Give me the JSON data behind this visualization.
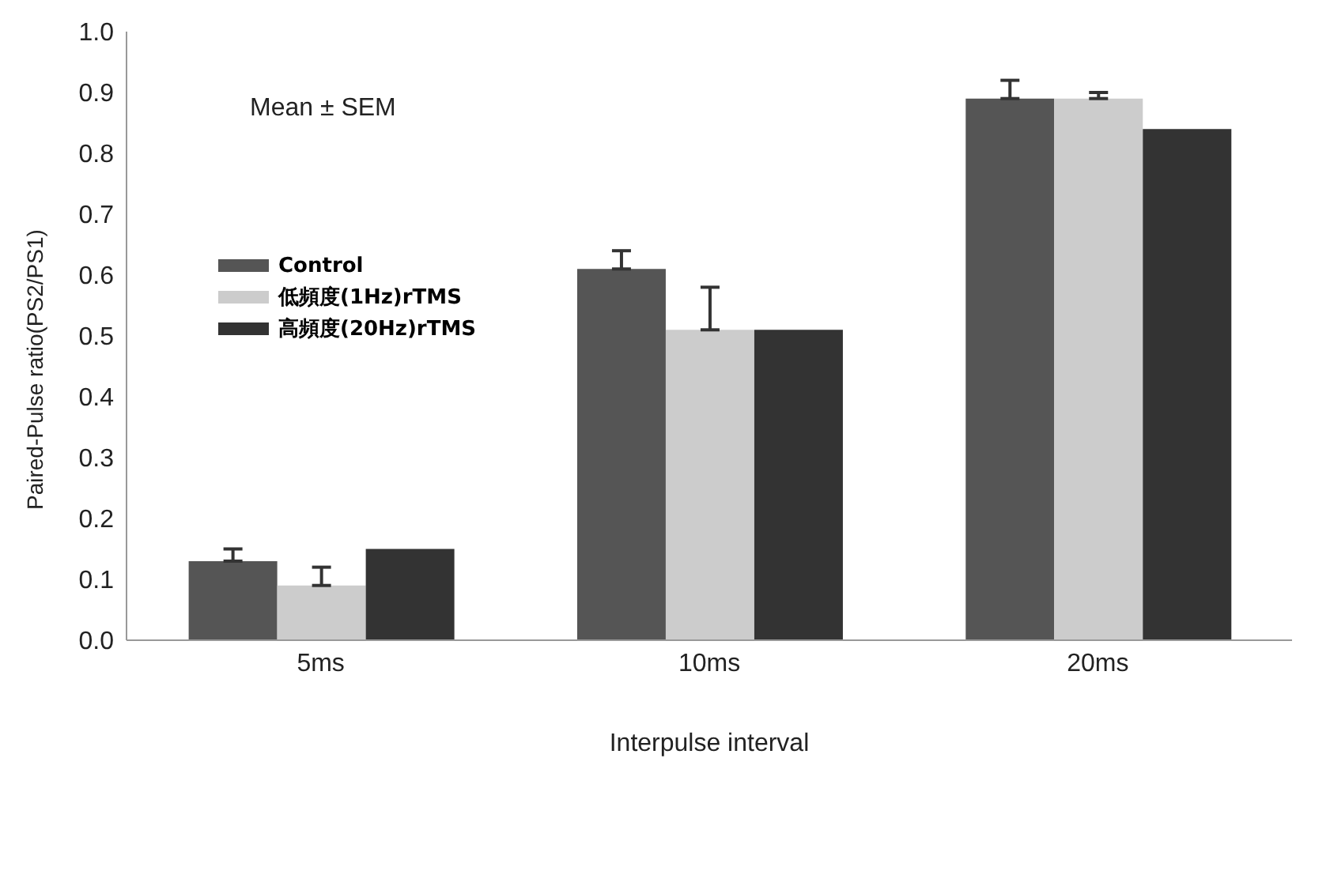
{
  "chart_data": {
    "type": "bar",
    "xlabel": "Interpulse interval",
    "ylabel": "Paired-Pulse ratio(PS2/PS1)",
    "annotations": [
      "Mean ± SEM"
    ],
    "categories": [
      "5ms",
      "10ms",
      "20ms"
    ],
    "series": [
      {
        "name": "Control",
        "color": "#555555",
        "values": [
          0.13,
          0.61,
          0.89
        ],
        "errors": [
          [
            0.13,
            0.15
          ],
          [
            0.61,
            0.64
          ],
          [
            0.89,
            0.92
          ]
        ]
      },
      {
        "name": "低頻度(1Hz)rTMS",
        "color": "#cccccc",
        "values": [
          0.09,
          0.51,
          0.89
        ],
        "errors": [
          [
            0.09,
            0.12
          ],
          [
            0.51,
            0.58
          ],
          [
            0.89,
            0.9
          ]
        ]
      },
      {
        "name": "高頻度(20Hz)rTMS",
        "color": "#333333",
        "values": [
          0.15,
          0.51,
          0.84
        ]
      }
    ],
    "ylim": [
      0,
      1.0
    ],
    "yticks": [
      {
        "value": 0,
        "label": "0.0"
      },
      0.1,
      0.2,
      0.3,
      0.4,
      0.5,
      0.6,
      0.7,
      0.8,
      0.9,
      {
        "value": 1,
        "label": "1.0"
      }
    ],
    "legend": "top left"
  }
}
